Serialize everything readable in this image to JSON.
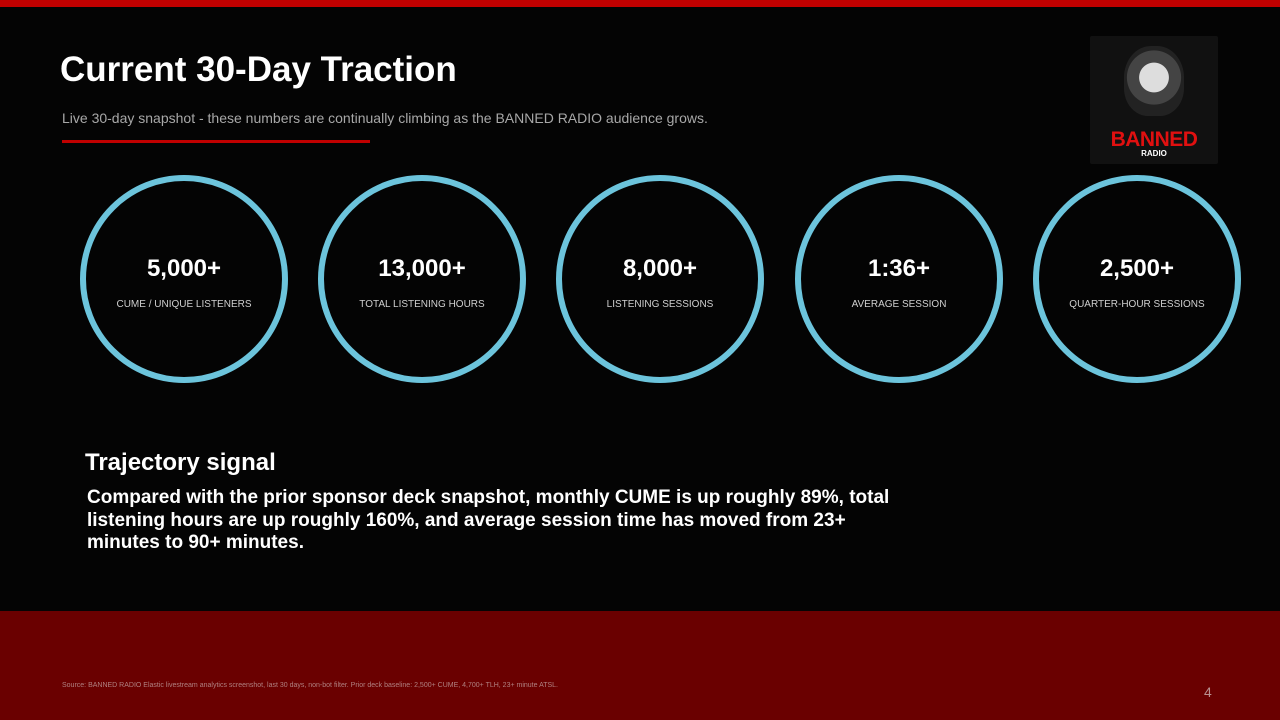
{
  "header": {
    "title": "Current 30-Day Traction",
    "subtitle": "Live 30-day snapshot - these numbers are continually climbing as the BANNED RADIO audience grows."
  },
  "logo": {
    "name": "BANNED",
    "sub": "RADIO"
  },
  "metrics": [
    {
      "value": "5,000+",
      "label": "CUME / UNIQUE LISTENERS"
    },
    {
      "value": "13,000+",
      "label": "TOTAL LISTENING HOURS"
    },
    {
      "value": "8,000+",
      "label": "LISTENING SESSIONS"
    },
    {
      "value": "1:36+",
      "label": "AVERAGE SESSION"
    },
    {
      "value": "2,500+",
      "label": "QUARTER-HOUR SESSIONS"
    }
  ],
  "trajectory": {
    "heading": "Trajectory signal",
    "body": "Compared with the prior sponsor deck snapshot, monthly CUME is up roughly 89%, total listening hours are up roughly 160%, and average session time has moved from 23+ minutes to 90+ minutes."
  },
  "footer": {
    "source": "Source: BANNED RADIO Elastic livestream analytics screenshot, last 30 days, non-bot filter. Prior deck baseline: 2,500+ CUME, 4,700+ TLH, 23+ minute ATSL.",
    "page": 4
  }
}
